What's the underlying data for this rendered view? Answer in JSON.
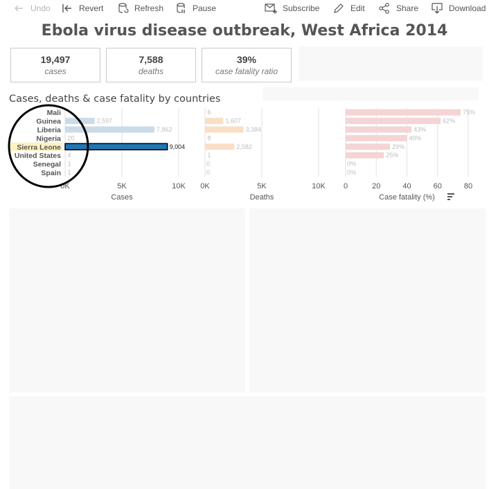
{
  "toolbar": {
    "undo": "Undo",
    "revert": "Revert",
    "refresh": "Refresh",
    "pause": "Pause",
    "subscribe": "Subscribe",
    "edit": "Edit",
    "share": "Share",
    "download": "Download"
  },
  "title": "Ebola virus disease outbreak, West Africa 2014",
  "kpis": [
    {
      "value": "19,497",
      "label": "cases"
    },
    {
      "value": "7,588",
      "label": "deaths"
    },
    {
      "value": "39%",
      "label": "case fatality ratio"
    }
  ],
  "section_title": "Cases, deaths & case fatality by countries",
  "colors": {
    "cases_bar": "#cbdbe8",
    "deaths_bar": "#fadfc6",
    "fatality_bar": "#f4d4d4",
    "selected_bar": "#1f77b4",
    "selected_label_bg": "#fdf2c0",
    "annotation_circle": "#000000"
  },
  "selected_country": "Sierra Leone",
  "chart_data": [
    {
      "type": "bar",
      "orientation": "horizontal",
      "categories": [
        "Mali",
        "Guinea",
        "Liberia",
        "Nigeria",
        "Sierra Leone",
        "United States",
        "Senegal",
        "Spain"
      ],
      "values": [
        null,
        2597,
        7862,
        20,
        9004,
        4,
        1,
        1
      ],
      "labels": [
        "",
        "2,597",
        "7,862",
        "20",
        "9,004",
        "4",
        "1",
        "1"
      ],
      "xlabel": "Cases",
      "xticks": [
        "0K",
        "5K",
        "10K"
      ],
      "xlim": [
        0,
        10000
      ]
    },
    {
      "type": "bar",
      "orientation": "horizontal",
      "categories": [
        "Mali",
        "Guinea",
        "Liberia",
        "Nigeria",
        "Sierra Leone",
        "United States",
        "Senegal",
        "Spain"
      ],
      "values": [
        6,
        1607,
        3384,
        8,
        2582,
        1,
        0,
        0
      ],
      "labels": [
        "6",
        "1,607",
        "3,384",
        "8",
        "2,582",
        "1",
        "0",
        "0"
      ],
      "xlabel": "Deaths",
      "xticks": [
        "0K",
        "5K",
        "10K"
      ],
      "xlim": [
        0,
        10000
      ]
    },
    {
      "type": "bar",
      "orientation": "horizontal",
      "categories": [
        "Mali",
        "Guinea",
        "Liberia",
        "Nigeria",
        "Sierra Leone",
        "United States",
        "Senegal",
        "Spain"
      ],
      "values": [
        75,
        62,
        43,
        40,
        29,
        25,
        0,
        0
      ],
      "labels": [
        "75%",
        "62%",
        "43%",
        "40%",
        "29%",
        "25%",
        "0%",
        "0%"
      ],
      "xlabel": "Case fatality (%)",
      "xticks": [
        "0",
        "20",
        "40",
        "60",
        "80"
      ],
      "xlim": [
        0,
        80
      ]
    }
  ]
}
